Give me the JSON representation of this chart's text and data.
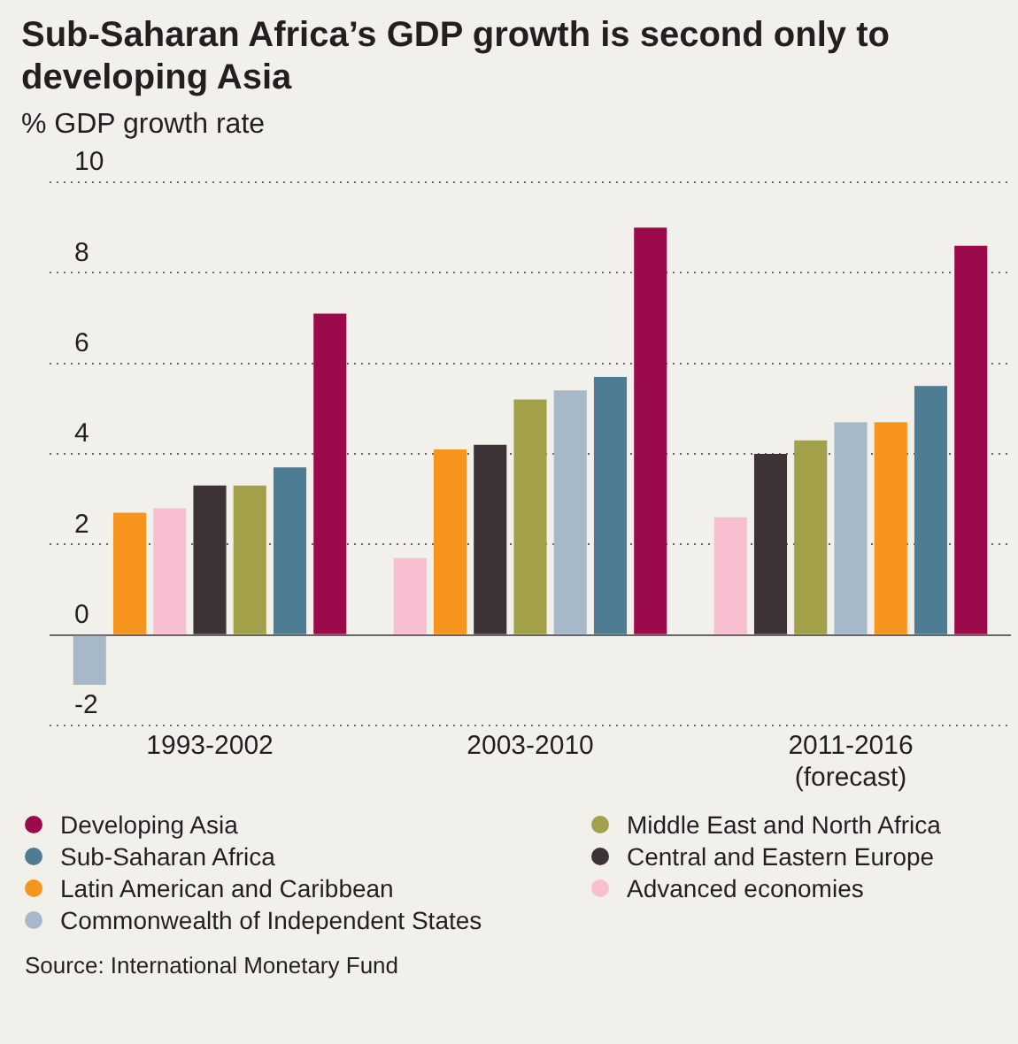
{
  "chart_data": {
    "type": "bar",
    "title": "Sub-Saharan Africa’s GDP growth is second only to developing Asia",
    "ylabel": "% GDP growth rate",
    "categories": [
      "1993-2002",
      "2003-2010",
      "2011-2016 (forecast)"
    ],
    "series": [
      {
        "name": "Developing Asia",
        "color": "#9b0a4b",
        "values": [
          7.1,
          9.0,
          8.6
        ]
      },
      {
        "name": "Middle East and North Africa",
        "color": "#a3a04a",
        "values": [
          3.3,
          5.2,
          4.3
        ]
      },
      {
        "name": "Sub-Saharan Africa",
        "color": "#4e7d93",
        "values": [
          3.7,
          5.7,
          5.5
        ]
      },
      {
        "name": "Central and Eastern Europe",
        "color": "#3d3236",
        "values": [
          3.3,
          4.2,
          4.0
        ]
      },
      {
        "name": "Latin American and Caribbean",
        "color": "#f7941d",
        "values": [
          2.7,
          4.1,
          4.7
        ]
      },
      {
        "name": "Advanced economies",
        "color": "#f7bfd0",
        "values": [
          2.8,
          1.7,
          2.6
        ]
      },
      {
        "name": "Commonwealth of Independent States",
        "color": "#a7b9c8",
        "values": [
          -1.1,
          5.4,
          4.7
        ]
      }
    ],
    "ylim": [
      -2,
      10
    ],
    "yticks": [
      -2,
      0,
      2,
      4,
      6,
      8,
      10
    ],
    "grid": "y",
    "legend": "bottom",
    "annotations": [
      "Source: International Monetary Fund"
    ]
  }
}
